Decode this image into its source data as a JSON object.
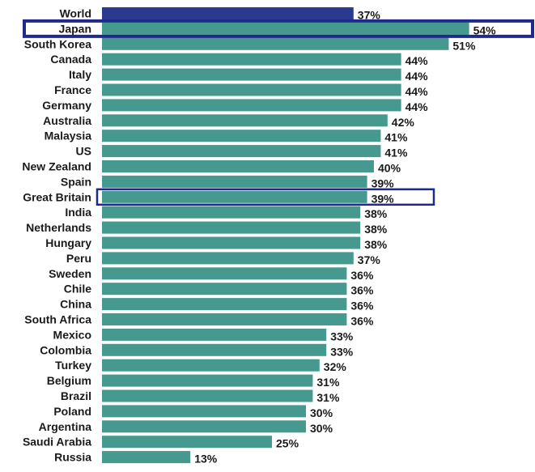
{
  "chart_data": {
    "type": "bar",
    "orientation": "horizontal",
    "title": "",
    "xlabel": "",
    "ylabel": "",
    "grid": false,
    "value_suffix": "%",
    "xlim": [
      0,
      56
    ],
    "categories": [
      "World",
      "Japan",
      "South Korea",
      "Canada",
      "Italy",
      "France",
      "Germany",
      "Australia",
      "Malaysia",
      "US",
      "New Zealand",
      "Spain",
      "Great Britain",
      "India",
      "Netherlands",
      "Hungary",
      "Peru",
      "Sweden",
      "Chile",
      "China",
      "South Africa",
      "Mexico",
      "Colombia",
      "Turkey",
      "Belgium",
      "Brazil",
      "Poland",
      "Argentina",
      "Saudi Arabia",
      "Russia"
    ],
    "values": [
      37,
      54,
      51,
      44,
      44,
      44,
      44,
      42,
      41,
      41,
      40,
      39,
      39,
      38,
      38,
      38,
      37,
      36,
      36,
      36,
      36,
      33,
      33,
      32,
      31,
      31,
      30,
      30,
      25,
      13
    ],
    "labels": [
      "37%",
      "54%",
      "51%",
      "44%",
      "44%",
      "44%",
      "44%",
      "42%",
      "41%",
      "41%",
      "40%",
      "39%",
      "39%",
      "38%",
      "38%",
      "38%",
      "37%",
      "36%",
      "36%",
      "36%",
      "36%",
      "33%",
      "33%",
      "32%",
      "31%",
      "31%",
      "30%",
      "30%",
      "25%",
      "13%"
    ],
    "highlighted_bar": "World",
    "outlined_categories": [
      "Japan",
      "Great Britain"
    ],
    "colors": {
      "bar": "#45998f",
      "highlight_bar": "#2b3a8f",
      "outline": "#1f2a8a",
      "text": "#1a1a1a"
    }
  }
}
